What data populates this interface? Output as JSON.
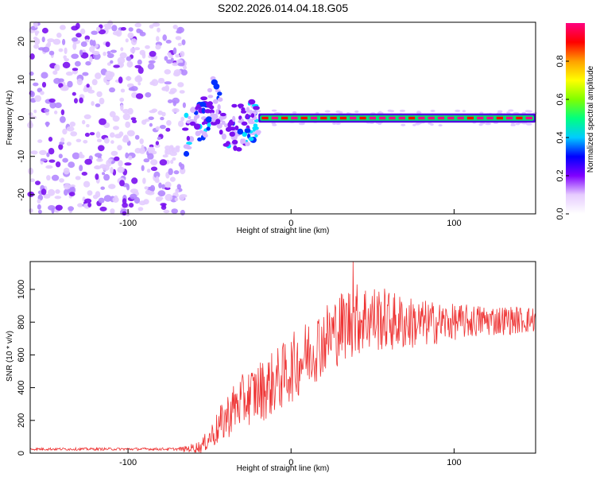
{
  "title": "S202.2026.014.04.18.G05",
  "chart_data": [
    {
      "type": "heatmap",
      "title": "S202.2026.014.04.18.G05",
      "xlabel": "Height of straight line (km)",
      "ylabel": "Frequency (Hz)",
      "xlim": [
        -160,
        150
      ],
      "ylim": [
        -25,
        25
      ],
      "xticks": [
        -100,
        0,
        100
      ],
      "yticks": [
        -20,
        -10,
        0,
        10,
        20
      ],
      "colorbar": {
        "label": "Normalized spectral amplitude",
        "range": [
          0,
          1
        ],
        "ticks": [
          "0.0",
          "0.2",
          "0.4",
          "0.6",
          "0.8"
        ],
        "tick_values": [
          0,
          0.2,
          0.4,
          0.6,
          0.8
        ],
        "colors": [
          "#ffffff",
          "#e6ccff",
          "#8000ff",
          "#0000ff",
          "#00ccff",
          "#00ff80",
          "#80ff00",
          "#ffff00",
          "#ffa000",
          "#ff0000",
          "#ff0080"
        ]
      },
      "regions": [
        {
          "x": [
            -160,
            -65
          ],
          "description": "broadband noise",
          "amplitude": 0.15
        },
        {
          "x": [
            -65,
            -20
          ],
          "description": "rising fringes",
          "amplitude": 0.35
        },
        {
          "x": [
            -20,
            150
          ],
          "description": "steady line near 0 Hz",
          "freq": 0,
          "amplitude": 0.95
        }
      ]
    },
    {
      "type": "line",
      "xlabel": "Height of straight line (km)",
      "ylabel": "SNR (10 * v/v)",
      "xlim": [
        -160,
        150
      ],
      "ylim": [
        0,
        1170
      ],
      "xticks": [
        -100,
        0,
        100
      ],
      "yticks": [
        0,
        200,
        400,
        600,
        800,
        1000
      ],
      "series": [
        {
          "name": "SNR",
          "color": "#ee3333",
          "trend": {
            "x": [
              -160,
              -65,
              -55,
              -45,
              -35,
              -25,
              -15,
              -5,
              5,
              15,
              25,
              35,
              45,
              55,
              65,
              80,
              100,
              120,
              150
            ],
            "y": [
              25,
              25,
              40,
              150,
              280,
              350,
              400,
              470,
              560,
              650,
              730,
              800,
              830,
              820,
              800,
              790,
              800,
              810,
              815
            ]
          },
          "noise_amplitude": {
            "x": [
              -160,
              -70,
              -55,
              -40,
              -20,
              0,
              20,
              40,
              60,
              100,
              150
            ],
            "y": [
              8,
              8,
              40,
              140,
              190,
              210,
              220,
              230,
              190,
              110,
              80
            ]
          },
          "peak": {
            "x": 38,
            "y": 1170
          }
        }
      ]
    }
  ]
}
